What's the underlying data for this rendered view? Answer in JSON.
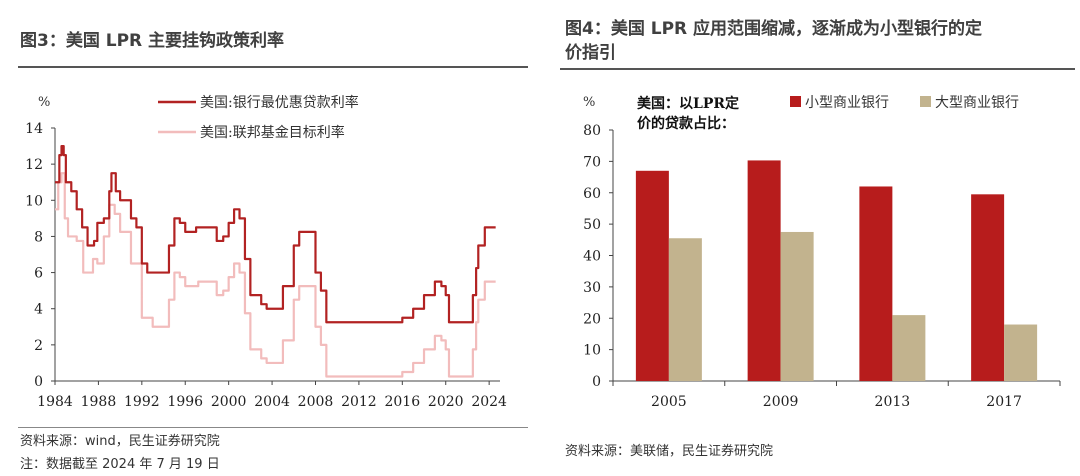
{
  "left_panel": {
    "title": "图3：美国 LPR 主要挂钩政策利率",
    "source": "资料来源：wind，民生证券研究院",
    "note": "注：数据截至 2024 年 7 月 19 日"
  },
  "right_panel": {
    "title_line1": "图4：美国 LPR 应用范围缩减，逐渐成为小型银行的定",
    "title_line2": "价指引",
    "source": "资料来源：美联储，民生证券研究院"
  },
  "chart_data": [
    {
      "type": "line",
      "ylabel": "%",
      "ylim": [
        0,
        14
      ],
      "xlim": [
        1984,
        2025
      ],
      "x_ticks": [
        1984,
        1988,
        1992,
        1996,
        2000,
        2004,
        2008,
        2012,
        2016,
        2020,
        2024
      ],
      "y_ticks": [
        0,
        2,
        4,
        6,
        8,
        10,
        12,
        14
      ],
      "legend_position": "top",
      "series": [
        {
          "name": "美国:银行最优惠贷款利率",
          "color": "#b22222",
          "points": [
            [
              1984.0,
              11.0
            ],
            [
              1984.4,
              12.5
            ],
            [
              1984.6,
              13.0
            ],
            [
              1984.8,
              12.5
            ],
            [
              1985.0,
              11.0
            ],
            [
              1985.5,
              10.5
            ],
            [
              1986.0,
              9.5
            ],
            [
              1986.5,
              8.5
            ],
            [
              1987.0,
              7.5
            ],
            [
              1987.6,
              7.75
            ],
            [
              1987.9,
              8.75
            ],
            [
              1988.5,
              9.0
            ],
            [
              1989.0,
              10.5
            ],
            [
              1989.2,
              11.5
            ],
            [
              1989.6,
              10.5
            ],
            [
              1990.0,
              10.0
            ],
            [
              1991.0,
              9.0
            ],
            [
              1991.5,
              8.5
            ],
            [
              1992.0,
              6.5
            ],
            [
              1992.5,
              6.0
            ],
            [
              1994.0,
              6.0
            ],
            [
              1994.5,
              7.5
            ],
            [
              1995.0,
              9.0
            ],
            [
              1995.5,
              8.75
            ],
            [
              1996.0,
              8.25
            ],
            [
              1997.0,
              8.5
            ],
            [
              1998.5,
              8.5
            ],
            [
              1998.9,
              7.75
            ],
            [
              1999.5,
              8.0
            ],
            [
              2000.0,
              8.75
            ],
            [
              2000.5,
              9.5
            ],
            [
              2001.0,
              9.0
            ],
            [
              2001.5,
              6.75
            ],
            [
              2002.0,
              4.75
            ],
            [
              2003.0,
              4.25
            ],
            [
              2003.5,
              4.0
            ],
            [
              2004.5,
              4.0
            ],
            [
              2005.0,
              5.25
            ],
            [
              2006.0,
              7.5
            ],
            [
              2006.5,
              8.25
            ],
            [
              2007.5,
              8.25
            ],
            [
              2008.0,
              6.0
            ],
            [
              2008.5,
              5.0
            ],
            [
              2009.0,
              3.25
            ],
            [
              2015.8,
              3.25
            ],
            [
              2016.0,
              3.5
            ],
            [
              2017.0,
              4.0
            ],
            [
              2018.0,
              4.75
            ],
            [
              2019.0,
              5.5
            ],
            [
              2019.6,
              5.25
            ],
            [
              2020.0,
              4.75
            ],
            [
              2020.3,
              3.25
            ],
            [
              2022.0,
              3.25
            ],
            [
              2022.5,
              4.75
            ],
            [
              2022.8,
              6.25
            ],
            [
              2023.0,
              7.5
            ],
            [
              2023.6,
              8.5
            ],
            [
              2024.6,
              8.5
            ]
          ]
        },
        {
          "name": "美国:联邦基金目标利率",
          "color": "#f2bcbc",
          "points": [
            [
              1984.0,
              9.5
            ],
            [
              1984.3,
              11.0
            ],
            [
              1984.6,
              11.5
            ],
            [
              1984.9,
              9.0
            ],
            [
              1985.2,
              8.0
            ],
            [
              1986.0,
              7.75
            ],
            [
              1986.6,
              6.0
            ],
            [
              1987.0,
              6.0
            ],
            [
              1987.5,
              6.75
            ],
            [
              1987.9,
              6.5
            ],
            [
              1988.5,
              8.0
            ],
            [
              1989.0,
              9.75
            ],
            [
              1989.5,
              9.25
            ],
            [
              1990.0,
              8.25
            ],
            [
              1991.0,
              6.5
            ],
            [
              1992.0,
              3.5
            ],
            [
              1993.0,
              3.0
            ],
            [
              1994.0,
              3.0
            ],
            [
              1994.5,
              4.5
            ],
            [
              1995.0,
              6.0
            ],
            [
              1995.5,
              5.75
            ],
            [
              1996.0,
              5.25
            ],
            [
              1997.2,
              5.5
            ],
            [
              1998.6,
              5.5
            ],
            [
              1998.9,
              4.75
            ],
            [
              1999.5,
              5.0
            ],
            [
              2000.0,
              5.75
            ],
            [
              2000.5,
              6.5
            ],
            [
              2001.0,
              6.0
            ],
            [
              2001.5,
              3.75
            ],
            [
              2002.0,
              1.75
            ],
            [
              2003.0,
              1.25
            ],
            [
              2003.5,
              1.0
            ],
            [
              2004.5,
              1.0
            ],
            [
              2005.0,
              2.25
            ],
            [
              2006.0,
              4.5
            ],
            [
              2006.5,
              5.25
            ],
            [
              2007.5,
              5.25
            ],
            [
              2008.0,
              3.0
            ],
            [
              2008.5,
              2.0
            ],
            [
              2009.0,
              0.25
            ],
            [
              2015.8,
              0.25
            ],
            [
              2016.0,
              0.5
            ],
            [
              2017.0,
              1.0
            ],
            [
              2018.0,
              1.75
            ],
            [
              2019.0,
              2.5
            ],
            [
              2019.6,
              2.25
            ],
            [
              2020.0,
              1.75
            ],
            [
              2020.3,
              0.25
            ],
            [
              2022.0,
              0.25
            ],
            [
              2022.5,
              1.75
            ],
            [
              2022.8,
              3.25
            ],
            [
              2023.0,
              4.5
            ],
            [
              2023.6,
              5.5
            ],
            [
              2024.6,
              5.5
            ]
          ]
        }
      ]
    },
    {
      "type": "bar",
      "ylabel": "%",
      "ylim": [
        0,
        80
      ],
      "y_ticks": [
        0,
        10,
        20,
        30,
        40,
        50,
        60,
        70,
        80
      ],
      "categories": [
        "2005",
        "2009",
        "2013",
        "2017"
      ],
      "annotation": "美国：以LPR定价的贷款占比：",
      "annotation_line1": "美国：以LPR定",
      "annotation_line2": "价的贷款占比：",
      "legend_position": "top-right",
      "series": [
        {
          "name": "小型商业银行",
          "color": "#b71c1c",
          "values": [
            67,
            70.3,
            62,
            59.5
          ]
        },
        {
          "name": "大型商业银行",
          "color": "#c2b38e",
          "values": [
            45.5,
            47.5,
            21,
            18
          ]
        }
      ]
    }
  ]
}
